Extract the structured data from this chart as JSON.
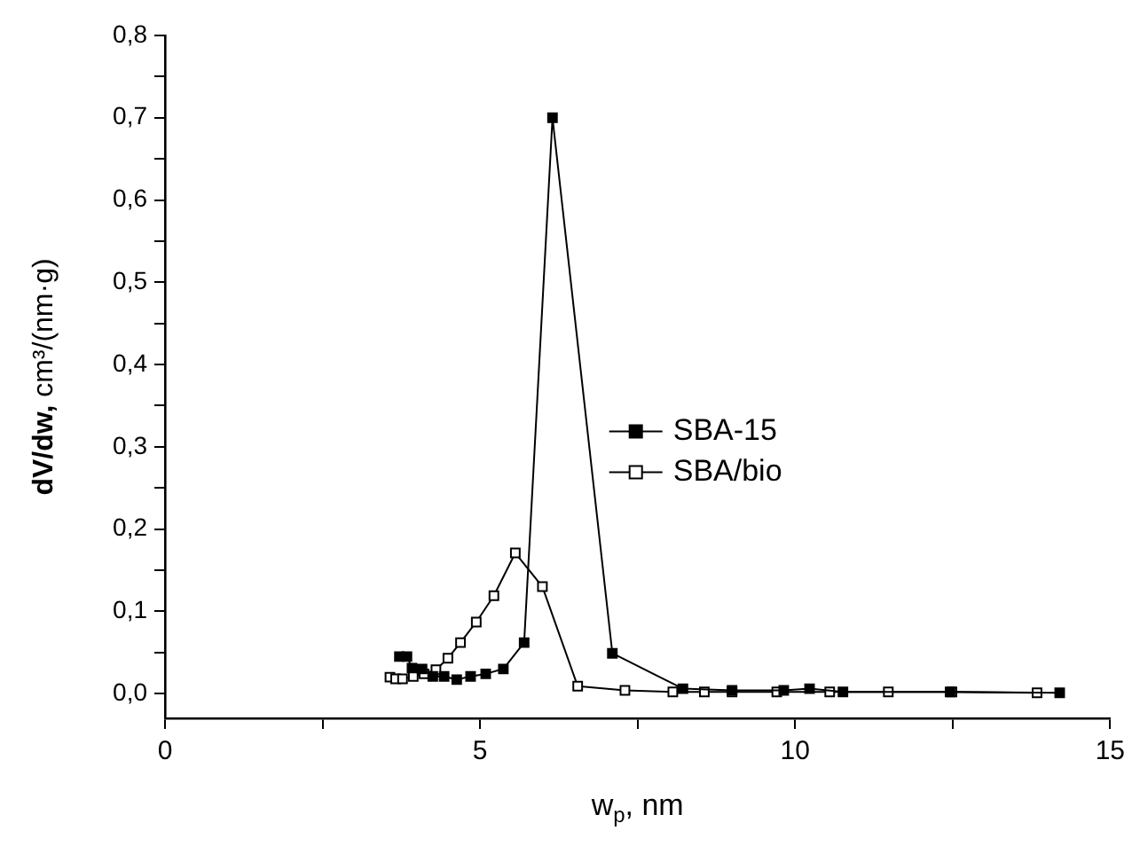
{
  "chart_data": {
    "type": "line",
    "xlabel": "w$_{p}$, nm",
    "ylabel": "dV/dw, cm³/(nm·g)",
    "xlim": [
      0,
      15
    ],
    "xticks": [
      0,
      {
        "value": 2.5,
        "label": null
      },
      5,
      {
        "value": 7.5,
        "label": null
      },
      10,
      {
        "value": 12.5,
        "label": null
      },
      15
    ],
    "ylim": [
      -0.03,
      0.8
    ],
    "yticks": [
      {
        "value": 0,
        "label": "0,0"
      },
      {
        "value": 0.05,
        "label": null
      },
      {
        "value": 0.1,
        "label": "0,1"
      },
      {
        "value": 0.15,
        "label": null
      },
      {
        "value": 0.2,
        "label": "0,2"
      },
      {
        "value": 0.25,
        "label": null
      },
      {
        "value": 0.3,
        "label": "0,3"
      },
      {
        "value": 0.35,
        "label": null
      },
      {
        "value": 0.4,
        "label": "0,4"
      },
      {
        "value": 0.45,
        "label": null
      },
      {
        "value": 0.5,
        "label": "0,5"
      },
      {
        "value": 0.55,
        "label": null
      },
      {
        "value": 0.6,
        "label": "0,6"
      },
      {
        "value": 0.65,
        "label": null
      },
      {
        "value": 0.7,
        "label": "0,7"
      },
      {
        "value": 0.75,
        "label": null
      },
      {
        "value": 0.8,
        "label": "0,8"
      }
    ],
    "grid": false,
    "legend": "right",
    "marker": "square",
    "line_style": "solid",
    "series": [
      {
        "name": "SBA-15",
        "color": "#000000",
        "x": [
          3.72,
          3.84,
          3.92,
          4.08,
          4.25,
          4.43,
          4.63,
          4.85,
          5.09,
          5.37,
          5.7,
          6.15,
          7.1,
          8.22,
          9.0,
          9.82,
          10.23,
          10.76,
          12.46,
          14.2
        ],
        "values": [
          0.045,
          0.045,
          0.031,
          0.03,
          0.021,
          0.021,
          0.017,
          0.021,
          0.024,
          0.03,
          0.062,
          0.7,
          0.049,
          0.006,
          0.004,
          0.004,
          0.006,
          0.002,
          0.002,
          0.001
        ]
      },
      {
        "name": "SBA/bio",
        "color": "#000000",
        "x": [
          3.57,
          3.66,
          3.77,
          3.94,
          4.11,
          4.3,
          4.49,
          4.69,
          4.94,
          5.22,
          5.56,
          5.99,
          6.55,
          7.3,
          8.06,
          8.56,
          9.0,
          9.71,
          10.55,
          11.48,
          12.49,
          13.84
        ],
        "values": [
          0.02,
          0.018,
          0.018,
          0.021,
          0.024,
          0.029,
          0.043,
          0.062,
          0.087,
          0.119,
          0.171,
          0.13,
          0.009,
          0.004,
          0.002,
          0.002,
          0.002,
          0.002,
          0.002,
          0.002,
          0.002,
          0.001
        ]
      }
    ]
  }
}
